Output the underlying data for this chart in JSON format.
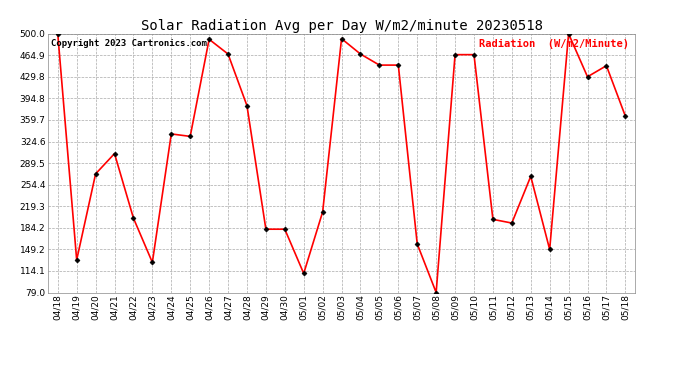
{
  "title": "Solar Radiation Avg per Day W/m2/minute 20230518",
  "copyright_text": "Copyright 2023 Cartronics.com",
  "legend_label": "Radiation  (W/m2/Minute)",
  "dates": [
    "04/18",
    "04/19",
    "04/20",
    "04/21",
    "04/22",
    "04/23",
    "04/24",
    "04/25",
    "04/26",
    "04/27",
    "04/28",
    "04/29",
    "04/30",
    "05/01",
    "05/02",
    "05/03",
    "05/04",
    "05/05",
    "05/06",
    "05/07",
    "05/08",
    "05/09",
    "05/10",
    "05/11",
    "05/12",
    "05/13",
    "05/14",
    "05/15",
    "05/16",
    "05/17",
    "05/18"
  ],
  "values": [
    500.0,
    132.0,
    272.0,
    305.0,
    200.0,
    128.0,
    337.0,
    333.0,
    491.0,
    467.0,
    383.0,
    182.0,
    182.0,
    110.0,
    210.0,
    492.0,
    467.0,
    449.0,
    449.0,
    158.0,
    79.0,
    466.0,
    466.0,
    198.0,
    192.0,
    268.0,
    149.0,
    500.0,
    430.0,
    448.0,
    366.0
  ],
  "line_color": "red",
  "marker_color": "black",
  "marker_size": 2.5,
  "line_width": 1.2,
  "background_color": "#ffffff",
  "grid_color": "#aaaaaa",
  "title_color": "black",
  "copyright_color": "black",
  "legend_color": "red",
  "ylim": [
    79.0,
    500.0
  ],
  "yticks": [
    79.0,
    114.1,
    149.2,
    184.2,
    219.3,
    254.4,
    289.5,
    324.6,
    359.7,
    394.8,
    429.8,
    464.9,
    500.0
  ],
  "title_fontsize": 10,
  "axis_fontsize": 6.5,
  "copyright_fontsize": 6.5,
  "legend_fontsize": 7.5
}
